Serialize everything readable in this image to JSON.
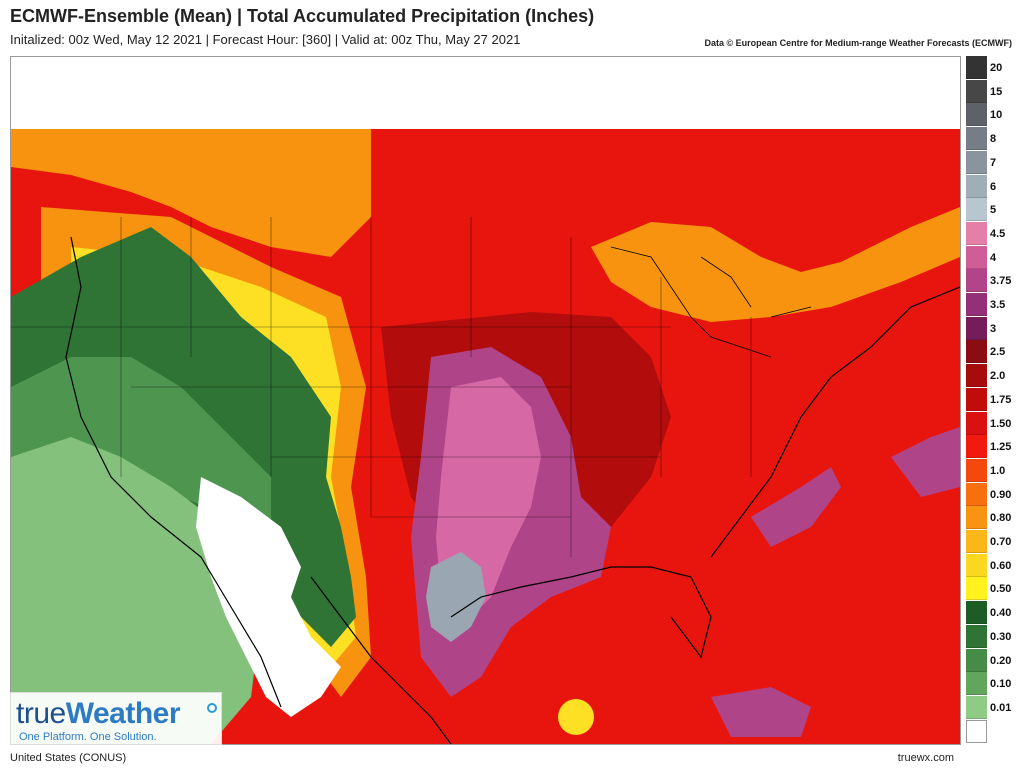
{
  "header": {
    "title": "ECMWF-Ensemble (Mean)  |  Total Accumulated Precipitation (Inches)",
    "subtitle": "Initalized: 00z Wed, May 12 2021  |  Forecast Hour: [360]  |  Valid at: 00z Thu, May 27 2021",
    "credit": "Data © European Centre for Medium-range Weather Forecasts (ECMWF)"
  },
  "legend": {
    "items": [
      {
        "label": "20",
        "color": "#333333"
      },
      {
        "label": "15",
        "color": "#474747"
      },
      {
        "label": "10",
        "color": "#5e6268"
      },
      {
        "label": "8",
        "color": "#767d86"
      },
      {
        "label": "7",
        "color": "#8a949e"
      },
      {
        "label": "6",
        "color": "#a0aeb8"
      },
      {
        "label": "5",
        "color": "#b8c6cf"
      },
      {
        "label": "4.5",
        "color": "#e47fa8"
      },
      {
        "label": "4",
        "color": "#cf5e98"
      },
      {
        "label": "3.75",
        "color": "#b2448a"
      },
      {
        "label": "3.5",
        "color": "#93307a"
      },
      {
        "label": "3",
        "color": "#751c5b"
      },
      {
        "label": "2.5",
        "color": "#8b0d12"
      },
      {
        "label": "2.0",
        "color": "#a60c0c"
      },
      {
        "label": "1.75",
        "color": "#c10c0c"
      },
      {
        "label": "1.50",
        "color": "#db1010"
      },
      {
        "label": "1.25",
        "color": "#f21a0e"
      },
      {
        "label": "1.0",
        "color": "#f4480c"
      },
      {
        "label": "0.90",
        "color": "#f76f0e"
      },
      {
        "label": "0.80",
        "color": "#f99413"
      },
      {
        "label": "0.70",
        "color": "#fbb719"
      },
      {
        "label": "0.60",
        "color": "#fcd720"
      },
      {
        "label": "0.50",
        "color": "#fff21e"
      },
      {
        "label": "0.40",
        "color": "#1d5c24"
      },
      {
        "label": "0.30",
        "color": "#2f7435"
      },
      {
        "label": "0.20",
        "color": "#468b47"
      },
      {
        "label": "0.10",
        "color": "#62a55d"
      },
      {
        "label": "0.01",
        "color": "#8fca86"
      },
      {
        "label": "",
        "color": "#ffffff"
      }
    ]
  },
  "logo": {
    "word_a": "true",
    "word_b": "Weather",
    "tagline": "One Platform. One Solution."
  },
  "footer": {
    "region": "United States (CONUS)",
    "site": "truewx.com"
  },
  "colors": {
    "base_red": "#e8150f",
    "orange": "#f7930e",
    "yellow": "#fde024",
    "dark_red": "#b20c0c",
    "purple": "#b04488",
    "pink": "#d768a6",
    "gray": "#9aa7b2",
    "green_dark": "#2f7435",
    "green_mid": "#4e9550",
    "green_light": "#84c17c",
    "no_precip": "#ffffff"
  }
}
